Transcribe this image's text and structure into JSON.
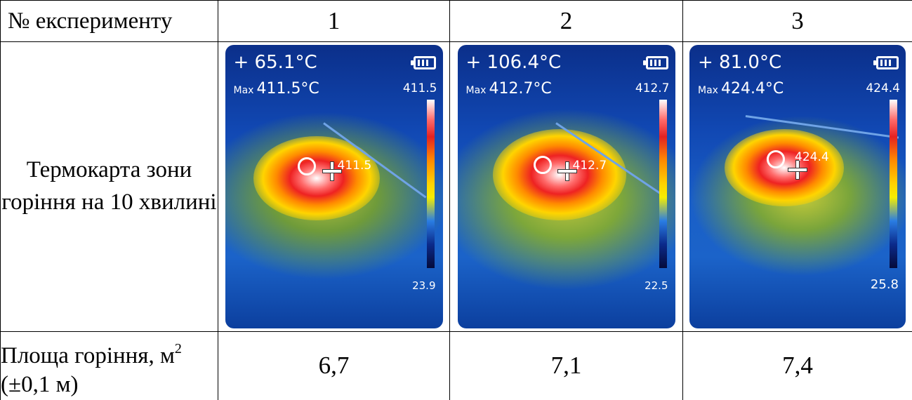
{
  "table": {
    "header": {
      "label": "№ експерименту",
      "cols": [
        "1",
        "2",
        "3"
      ]
    },
    "image_row_label": "Термокарта зони горіння на 10 хвилині",
    "images": [
      {
        "current": "+ 65.1°C",
        "max_label": "Max",
        "max_value": "411.5°C",
        "scale_top": "411.5",
        "scale_bottom": "23.9",
        "spot": "411.5"
      },
      {
        "current": "+ 106.4°C",
        "max_label": "Max",
        "max_value": "412.7°C",
        "scale_top": "412.7",
        "scale_bottom": "22.5",
        "spot": "412.7"
      },
      {
        "current": "+ 81.0°C",
        "max_label": "Max",
        "max_value": "424.4°C",
        "scale_top": "424.4",
        "scale_bottom": "25.8",
        "spot": "424.4"
      }
    ],
    "area_row": {
      "label_line1": "Площа горіння, м",
      "label_sup": "2",
      "label_line2": "(±0,1 м)",
      "values": [
        "6,7",
        "7,1",
        "7,4"
      ]
    }
  }
}
